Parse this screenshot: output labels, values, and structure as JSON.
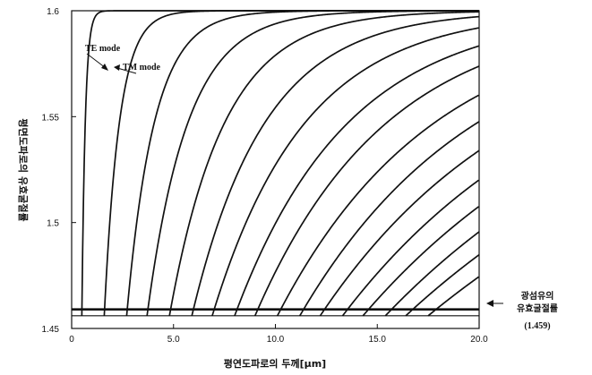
{
  "chart_data": {
    "type": "line",
    "title": "",
    "xlabel": "평연도파로의 두께[μm]",
    "ylabel": "평면도파로의 유효굴절률",
    "xlim": [
      0,
      20
    ],
    "ylim": [
      1.45,
      1.6
    ],
    "x_ticks": [
      "0",
      "5.0",
      "10.0",
      "15.0",
      "20.0"
    ],
    "y_ticks": [
      "1.45",
      "1.5",
      "1.55",
      "1.6"
    ],
    "grid": false,
    "mode_cutoffs": [
      0.5,
      1.6,
      2.7,
      3.7,
      4.8,
      5.9,
      6.9,
      8.0,
      9.0,
      10.1,
      11.2,
      12.2,
      13.3,
      14.3,
      15.4,
      16.4,
      17.5
    ],
    "mode_rates": [
      6.0,
      1.35,
      0.74,
      0.5,
      0.37,
      0.28,
      0.22,
      0.18,
      0.155,
      0.13,
      0.115,
      0.1,
      0.088,
      0.078,
      0.07,
      0.062,
      0.055
    ],
    "cladding_index": 1.459,
    "substrate_line": 1.456,
    "n_max": 1.6,
    "annotations": {
      "te_mode": "TE mode",
      "tm_mode": "TM mode",
      "fiber_index_line1": "광섬유의",
      "fiber_index_line2": "유효굴절률",
      "fiber_index_value": "(1.459)"
    }
  }
}
